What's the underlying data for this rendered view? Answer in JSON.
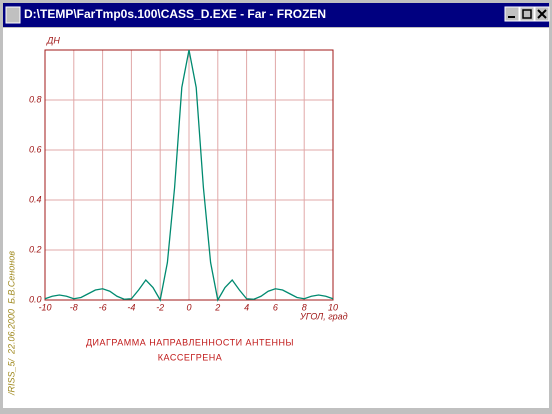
{
  "window": {
    "title": "D:\\TEMP\\FarTmp0s.100\\CASS_D.EXE - Far - FROZEN"
  },
  "chart_data": {
    "type": "line",
    "y_label": "ДН",
    "x_label": "УГОЛ, град",
    "title": "ДИАГРАММА НАПРАВЛЕННОСТИ АНТЕННЫ",
    "subtitle": "КАССЕГРЕНА",
    "side_note": "/RISS_5/  22.06.2000  Б.В.Сенонов",
    "x": [
      -10,
      -9.5,
      -9,
      -8.5,
      -8,
      -7.5,
      -7,
      -6.5,
      -6,
      -5.5,
      -5,
      -4.5,
      -4,
      -3.5,
      -3,
      -2.5,
      -2,
      -1.5,
      -1,
      -0.5,
      0,
      0.5,
      1,
      1.5,
      2,
      2.5,
      3,
      3.5,
      4,
      4.5,
      5,
      5.5,
      6,
      6.5,
      7,
      7.5,
      8,
      8.5,
      9,
      9.5,
      10
    ],
    "series": [
      {
        "name": "ДН",
        "color": "#008a70",
        "values": [
          0.005,
          0.015,
          0.02,
          0.015,
          0.005,
          0.01,
          0.025,
          0.04,
          0.045,
          0.035,
          0.015,
          0.003,
          0.005,
          0.04,
          0.08,
          0.05,
          0.0,
          0.15,
          0.45,
          0.85,
          1.0,
          0.85,
          0.45,
          0.15,
          0.0,
          0.05,
          0.08,
          0.04,
          0.005,
          0.003,
          0.015,
          0.035,
          0.045,
          0.04,
          0.025,
          0.01,
          0.005,
          0.015,
          0.02,
          0.015,
          0.005
        ]
      }
    ],
    "xlim": [
      -10,
      10
    ],
    "ylim": [
      0,
      1
    ],
    "xticks": [
      -10,
      -8,
      -6,
      -4,
      -2,
      0,
      2,
      4,
      6,
      8,
      10
    ],
    "yticks": [
      {
        "value": 0,
        "label": "0.0"
      },
      0.2,
      0.4,
      0.6,
      0.8
    ],
    "grid": true
  }
}
